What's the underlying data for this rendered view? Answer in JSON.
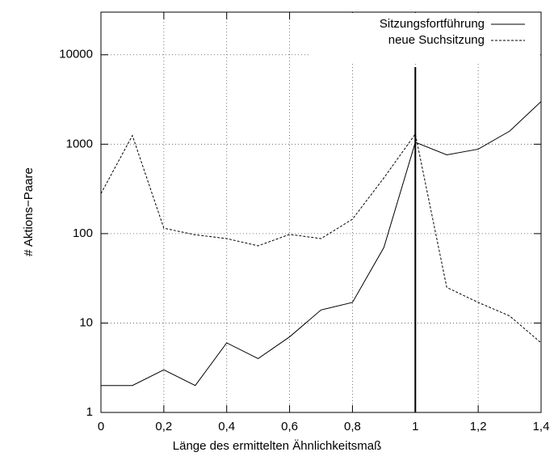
{
  "chart_data": {
    "type": "line",
    "xlabel": "Länge des ermittelten Ähnlichkeitsmaß",
    "ylabel": "# Aktions−Paare",
    "x": [
      0,
      0.1,
      0.2,
      0.3,
      0.4,
      0.5,
      0.6,
      0.7,
      0.8,
      0.9,
      1.0,
      1.1,
      1.2,
      1.3,
      1.4
    ],
    "series": [
      {
        "name": "Sitzungsfortführung",
        "color": "#000000",
        "dash": "solid",
        "values": [
          2,
          2,
          3,
          2,
          6,
          4,
          7,
          14,
          17,
          70,
          1050,
          760,
          880,
          1400,
          3000
        ]
      },
      {
        "name": "neue Suchsitzung",
        "color": "#000000",
        "dash": "dashed",
        "values": [
          280,
          1250,
          115,
          97,
          88,
          73,
          98,
          88,
          145,
          420,
          1300,
          25,
          17,
          12,
          6
        ]
      }
    ],
    "xlim": [
      0,
      1.4
    ],
    "xticks": [
      0,
      {
        "value": 0.2,
        "label": "0,2"
      },
      {
        "value": 0.4,
        "label": "0,4"
      },
      {
        "value": 0.6,
        "label": "0,6"
      },
      {
        "value": 0.8,
        "label": "0,8"
      },
      1,
      {
        "value": 1.2,
        "label": "1,2"
      },
      {
        "value": 1.4,
        "label": "1,4"
      }
    ],
    "ylim": [
      1,
      30000
    ],
    "yticks": [
      1,
      10,
      100,
      1000,
      10000
    ],
    "log_y": true,
    "grid": true,
    "vertical_line": 1,
    "legend": "top-right"
  }
}
